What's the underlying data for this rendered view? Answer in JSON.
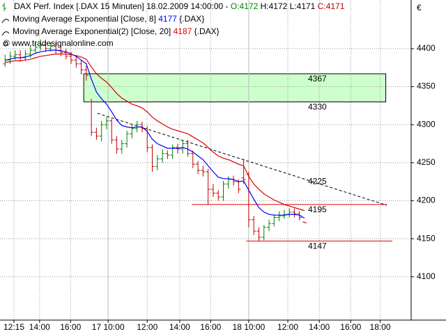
{
  "header": {
    "name": "DAX Perf. Index [.DAX  15 Minuten] 18.02.2009 14:00:00 -",
    "open": "O:4172",
    "high": "H:4172",
    "low": "L:4171",
    "close": "C:4171"
  },
  "watermark": "© www.tradesignalonline.com",
  "currency": "€",
  "chart_data": {
    "type": "ohlc",
    "xlim": [
      -1,
      80
    ],
    "ylim": [
      4043,
      4464
    ],
    "yticks": [
      4100,
      4150,
      4200,
      4250,
      4300,
      4350,
      4400
    ],
    "xticks": [
      {
        "value": 1.75,
        "label": "12:15"
      },
      {
        "value": 6.8,
        "label": "14:00"
      },
      {
        "value": 12.9,
        "label": "16:00"
      },
      {
        "value": 20.3,
        "label": "17 10:00"
      },
      {
        "value": 28,
        "label": "12:00"
      },
      {
        "value": 34.4,
        "label": "14:00"
      },
      {
        "value": 40.5,
        "label": "16:00"
      },
      {
        "value": 48,
        "label": "18 10:00"
      },
      {
        "value": 55.7,
        "label": "12:00"
      },
      {
        "value": 61.9,
        "label": "14:00"
      },
      {
        "value": 68.1,
        "label": "16:00"
      },
      {
        "value": 73.9,
        "label": "18:00"
      }
    ],
    "grid": true,
    "up_color": "#008000",
    "down_color": "#c00000",
    "open": [
      4380,
      4385,
      4390,
      4392,
      4388,
      4393,
      4398,
      4402,
      4405,
      4400,
      4403,
      4398,
      4395,
      4390,
      4385,
      4380,
      4372,
      4330,
      4290,
      4285,
      4300,
      4305,
      4280,
      4268,
      4275,
      4288,
      4295,
      4300,
      4295,
      4270,
      4245,
      4255,
      4262,
      4260,
      4270,
      4268,
      4275,
      4262,
      4248,
      4240,
      4238,
      4215,
      4210,
      4205,
      4222,
      4228,
      4225,
      4230,
      4235,
      4175,
      4160,
      4152,
      4165,
      4170,
      4178,
      4180,
      4182,
      4185,
      4183,
      4172
    ],
    "high": [
      4392,
      4396,
      4398,
      4398,
      4398,
      4404,
      4408,
      4412,
      4410,
      4408,
      4408,
      4404,
      4400,
      4396,
      4390,
      4385,
      4377,
      4334,
      4296,
      4305,
      4310,
      4308,
      4285,
      4280,
      4292,
      4300,
      4305,
      4304,
      4298,
      4274,
      4260,
      4268,
      4266,
      4274,
      4275,
      4280,
      4280,
      4266,
      4252,
      4246,
      4242,
      4222,
      4214,
      4226,
      4232,
      4233,
      4228,
      4255,
      4238,
      4180,
      4165,
      4168,
      4175,
      4182,
      4186,
      4188,
      4190,
      4190,
      4186,
      4172
    ],
    "low": [
      4376,
      4380,
      4385,
      4383,
      4384,
      4388,
      4394,
      4398,
      4396,
      4396,
      4393,
      4390,
      4386,
      4380,
      4375,
      4366,
      4358,
      4285,
      4280,
      4278,
      4294,
      4275,
      4262,
      4262,
      4270,
      4282,
      4290,
      4290,
      4264,
      4238,
      4240,
      4250,
      4255,
      4255,
      4262,
      4262,
      4258,
      4243,
      4235,
      4232,
      4195,
      4205,
      4200,
      4200,
      4216,
      4220,
      4210,
      4222,
      4165,
      4155,
      4147,
      4148,
      4160,
      4166,
      4173,
      4176,
      4178,
      4178,
      4174,
      4171
    ],
    "close": [
      4385,
      4390,
      4392,
      4388,
      4393,
      4398,
      4402,
      4405,
      4400,
      4403,
      4398,
      4395,
      4390,
      4385,
      4380,
      4372,
      4365,
      4290,
      4285,
      4300,
      4305,
      4280,
      4268,
      4275,
      4288,
      4295,
      4300,
      4295,
      4270,
      4245,
      4255,
      4262,
      4260,
      4270,
      4268,
      4275,
      4262,
      4248,
      4240,
      4238,
      4215,
      4210,
      4205,
      4222,
      4228,
      4225,
      4215,
      4228,
      4175,
      4160,
      4152,
      4165,
      4170,
      4178,
      4180,
      4182,
      4185,
      4183,
      4178,
      4171
    ],
    "series": [
      {
        "name": "Moving Average Exponential [Close, 8]",
        "source": "{.DAX}",
        "color": "#0000ff",
        "values": [
          4385,
          4386,
          4388,
          4388,
          4389,
          4391,
          4394,
          4396,
          4397,
          4398,
          4398,
          4397,
          4396,
          4393,
          4390,
          4385,
          4380,
          4360,
          4343,
          4334,
          4327,
          4317,
          4306,
          4299,
          4297,
          4296,
          4297,
          4297,
          4291,
          4281,
          4275,
          4272,
          4269,
          4269,
          4269,
          4270,
          4268,
          4264,
          4259,
          4254,
          4246,
          4238,
          4231,
          4229,
          4229,
          4228,
          4225,
          4226,
          4214,
          4202,
          4191,
          4185,
          4182,
          4181,
          4181,
          4181,
          4182,
          4182,
          4181,
          4177
        ]
      },
      {
        "name": "Moving Average Exponential(2) [Close, 20]",
        "source": "{.DAX}",
        "color": "#dd0000",
        "values": [
          4382,
          4383,
          4384,
          4384,
          4385,
          4386,
          4388,
          4390,
          4391,
          4392,
          4393,
          4393,
          4393,
          4392,
          4391,
          4389,
          4386,
          4376,
          4367,
          4361,
          4356,
          4349,
          4341,
          4335,
          4331,
          4327,
          4325,
          4322,
          4317,
          4310,
          4305,
          4301,
          4297,
          4294,
          4292,
          4290,
          4288,
          4284,
          4280,
          4276,
          4270,
          4264,
          4259,
          4256,
          4254,
          4251,
          4248,
          4246,
          4232,
          4222,
          4215,
          4209,
          4205,
          4201,
          4198,
          4195,
          4193,
          4191,
          4189,
          4187
        ]
      }
    ],
    "zone": {
      "low": 4330,
      "high": 4367,
      "x1": 15.5,
      "x2": 75,
      "color": "#ccffcc"
    },
    "levels": [
      {
        "value": 4195,
        "x1": 36.8,
        "x2": 75.2,
        "color": "#dd0000"
      },
      {
        "value": 4147,
        "x1": 47.5,
        "x2": 76.3,
        "color": "#dd0000"
      }
    ],
    "trendline": {
      "x1": 18.2,
      "y1": 4315,
      "x2": 75.2,
      "y2": 4194,
      "label": 4225
    }
  }
}
